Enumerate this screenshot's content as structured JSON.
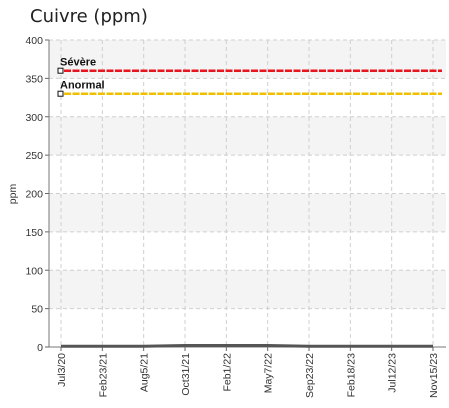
{
  "chart_data": {
    "type": "line",
    "title": "Cuivre (ppm)",
    "ylabel": "ppm",
    "xlabel": "",
    "ylim": [
      0,
      400
    ],
    "yticks": [
      0,
      50,
      100,
      150,
      200,
      250,
      300,
      350,
      400
    ],
    "x_tick_labels": [
      "Jul3/20",
      "Feb23/21",
      "Aug5/21",
      "Oct31/21",
      "Feb1/22",
      "May7/22",
      "Sep23/22",
      "Feb18/23",
      "Jul12/23",
      "Nov15/23"
    ],
    "grid": true,
    "thresholds": [
      {
        "label": "Sévère",
        "value": 360,
        "color": "#e8141e"
      },
      {
        "label": "Anormal",
        "value": 330,
        "color": "#f0c000"
      }
    ],
    "series": [
      {
        "values": [
          1,
          1,
          1,
          2,
          2,
          2,
          1,
          1,
          1,
          1
        ],
        "color": "#555555"
      }
    ]
  }
}
